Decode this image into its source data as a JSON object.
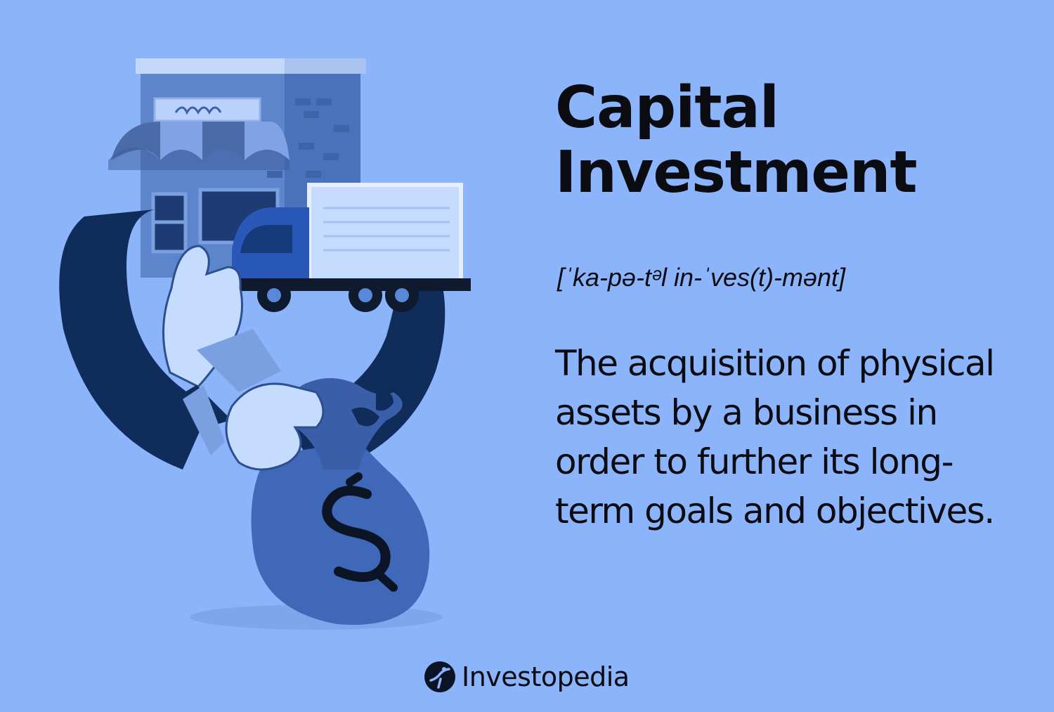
{
  "heading": {
    "line1": "Capital",
    "line2": "Investment"
  },
  "pronunciation": "[ˈka-pə-tᵊl in-ˈves(t)-mənt]",
  "definition": "The acquisition of physical assets by a business in order to further its long-term goals and objectives.",
  "brand": {
    "name": "Investopedia",
    "logo_icon": "investopedia-logo-icon"
  },
  "illustration": {
    "description_icons": [
      "storefront-icon",
      "truck-icon",
      "hand-icon",
      "money-bag-icon",
      "dollar-sign-icon"
    ]
  },
  "colors": {
    "background": "#8bb4fb",
    "text": "#0b0b12",
    "navy": "#0e2a55",
    "mid_blue": "#3f69b8",
    "light_blue": "#c6dcff"
  }
}
